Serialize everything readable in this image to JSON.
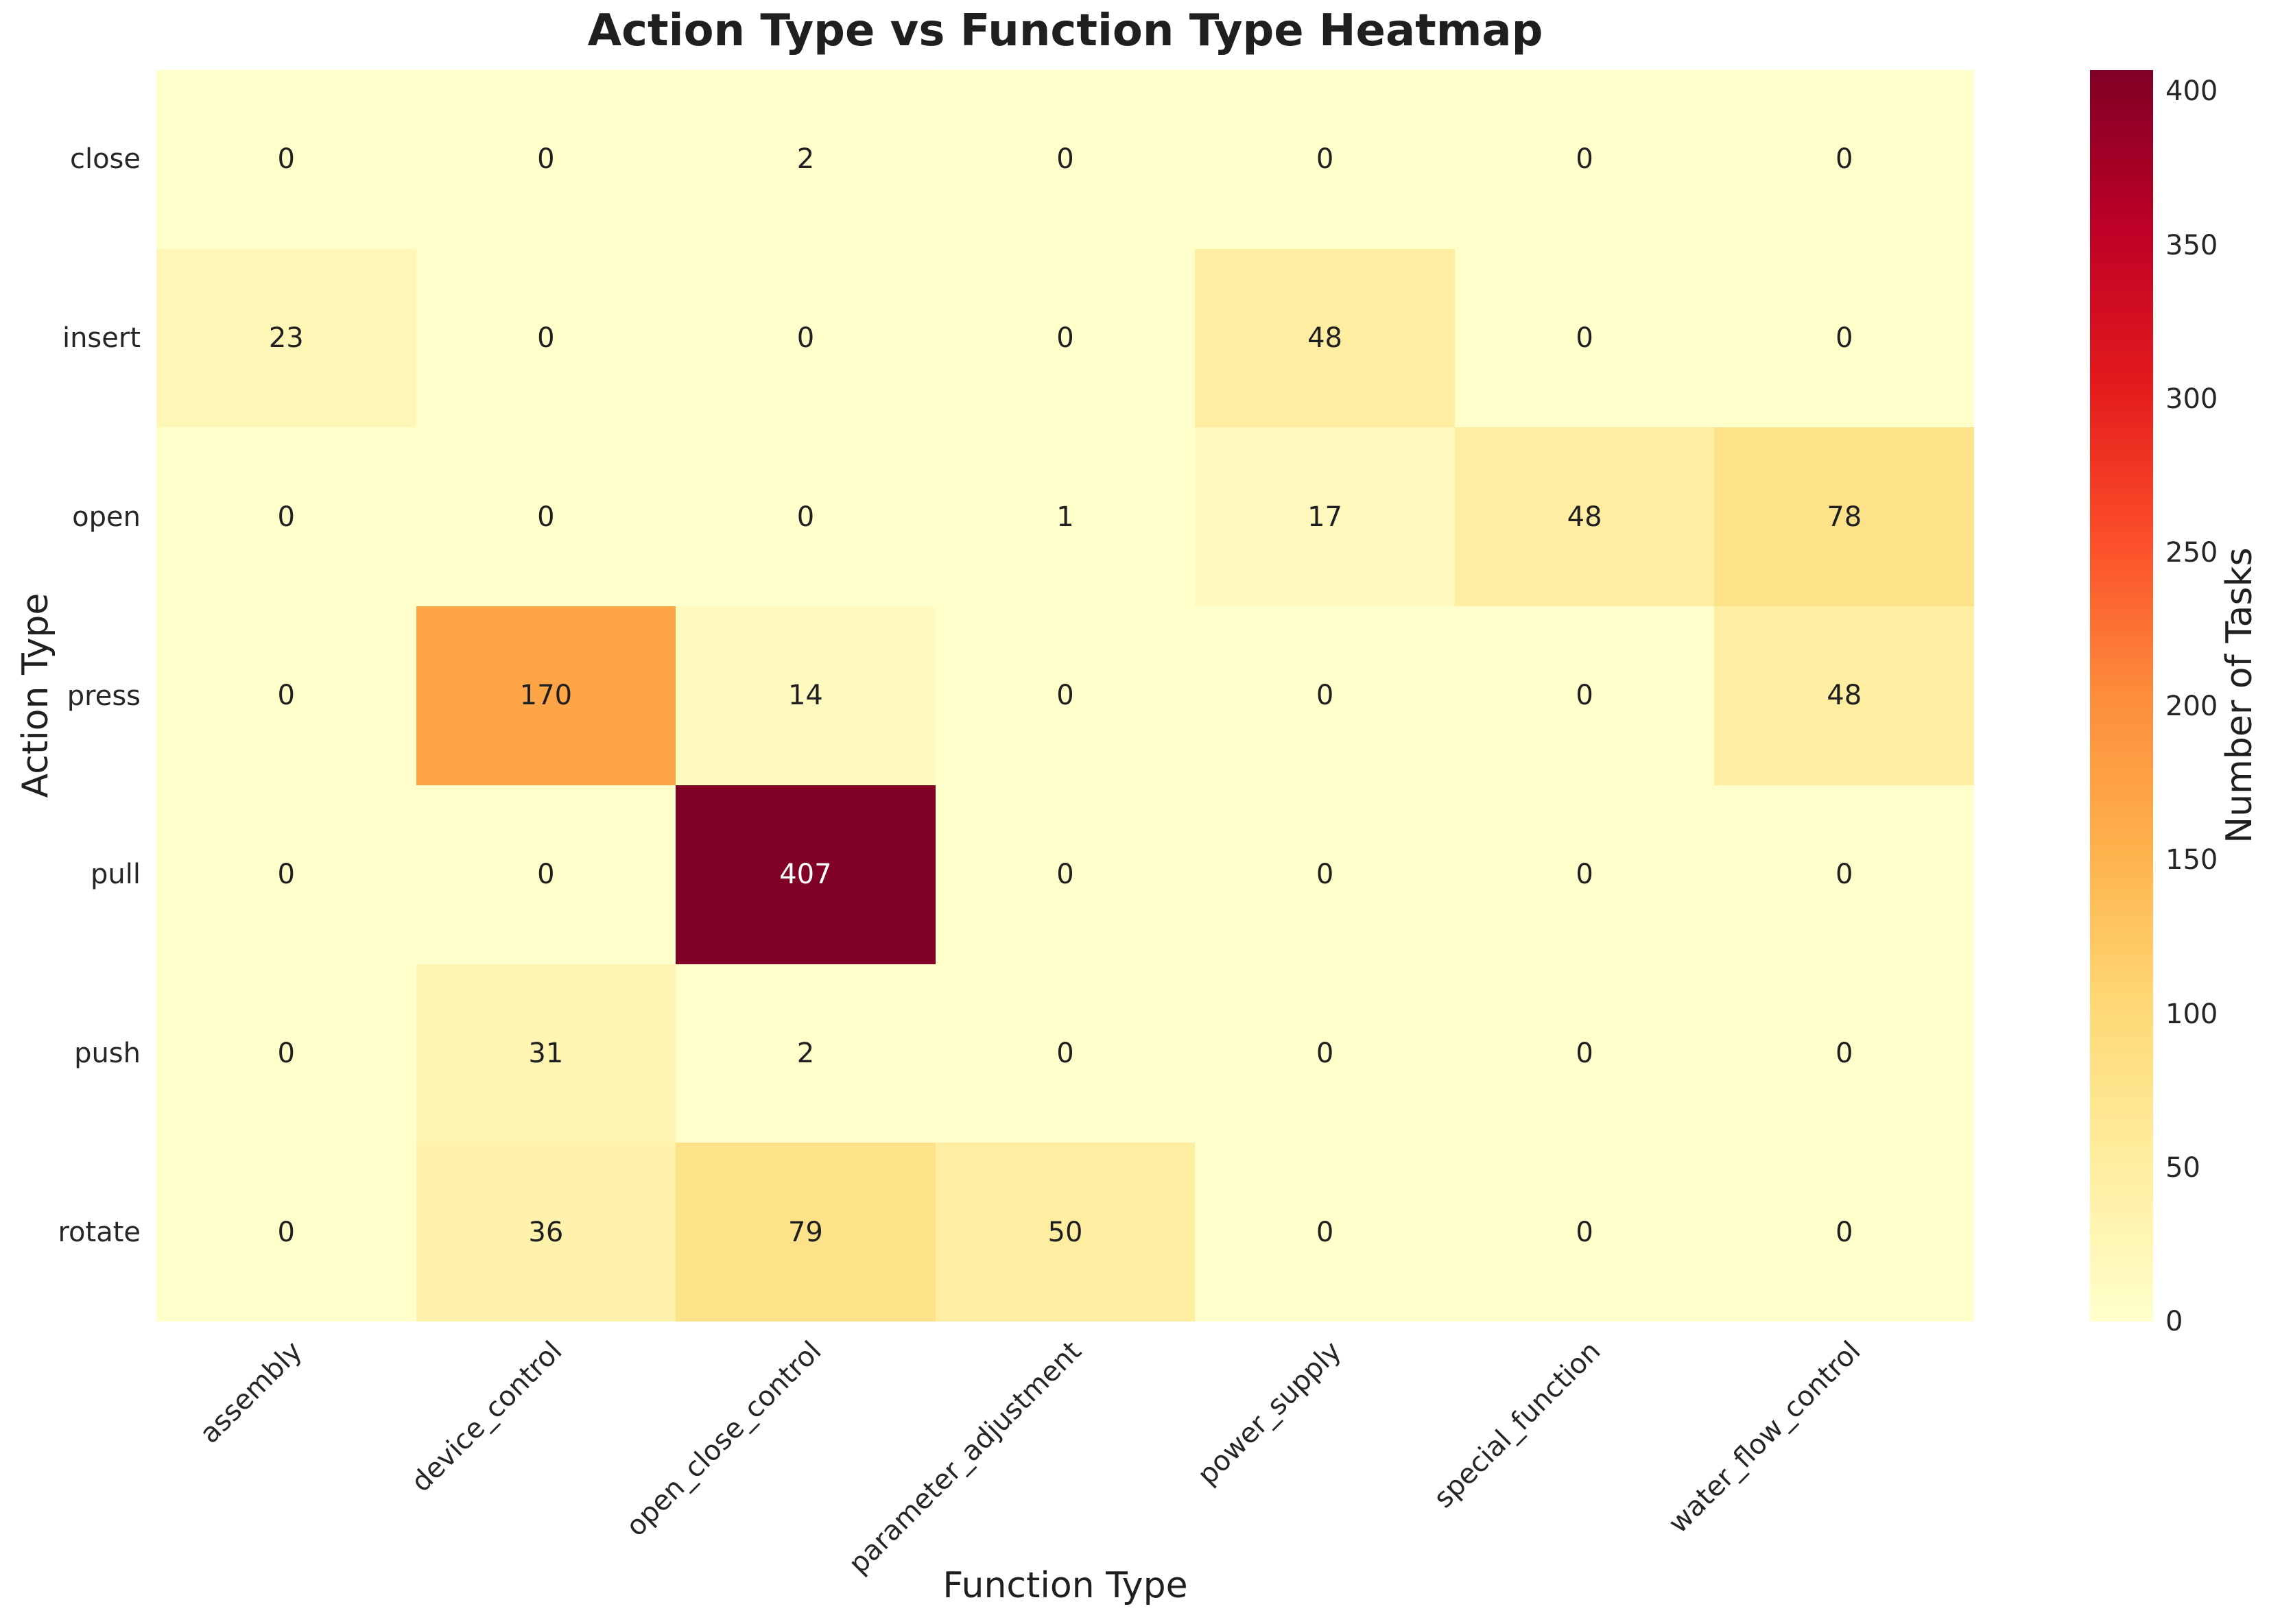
{
  "chart_data": {
    "type": "heatmap",
    "title": "Action Type vs Function Type Heatmap",
    "xlabel": "Function Type",
    "ylabel": "Action Type",
    "x_categories": [
      "assembly",
      "device_control",
      "open_close_control",
      "parameter_adjustment",
      "power_supply",
      "special_function",
      "water_flow_control"
    ],
    "y_categories": [
      "close",
      "insert",
      "open",
      "press",
      "pull",
      "push",
      "rotate"
    ],
    "values": [
      [
        0,
        0,
        2,
        0,
        0,
        0,
        0
      ],
      [
        23,
        0,
        0,
        0,
        48,
        0,
        0
      ],
      [
        0,
        0,
        0,
        1,
        17,
        48,
        78
      ],
      [
        0,
        170,
        14,
        0,
        0,
        0,
        48
      ],
      [
        0,
        0,
        407,
        0,
        0,
        0,
        0
      ],
      [
        0,
        31,
        2,
        0,
        0,
        0,
        0
      ],
      [
        0,
        36,
        79,
        50,
        0,
        0,
        0
      ]
    ],
    "vmin": 0,
    "vmax": 407,
    "grid": false,
    "annotations_shown": true,
    "colorbar": {
      "label": "Number of Tasks",
      "ticks": [
        400,
        350,
        300,
        250,
        200,
        150,
        100,
        50,
        0
      ],
      "position": "right"
    },
    "colormap": {
      "name": "YlOrRd",
      "stops": [
        [
          0.0,
          "#ffffcc"
        ],
        [
          0.125,
          "#ffeda0"
        ],
        [
          0.25,
          "#fed976"
        ],
        [
          0.375,
          "#feb24c"
        ],
        [
          0.5,
          "#fd8d3c"
        ],
        [
          0.625,
          "#fc4e2a"
        ],
        [
          0.75,
          "#e31a1c"
        ],
        [
          0.875,
          "#bd0026"
        ],
        [
          1.0,
          "#800026"
        ]
      ]
    },
    "text_colors": {
      "dark": "#1f1f1f",
      "light": "#ffffff"
    },
    "background": "#ffffff"
  }
}
